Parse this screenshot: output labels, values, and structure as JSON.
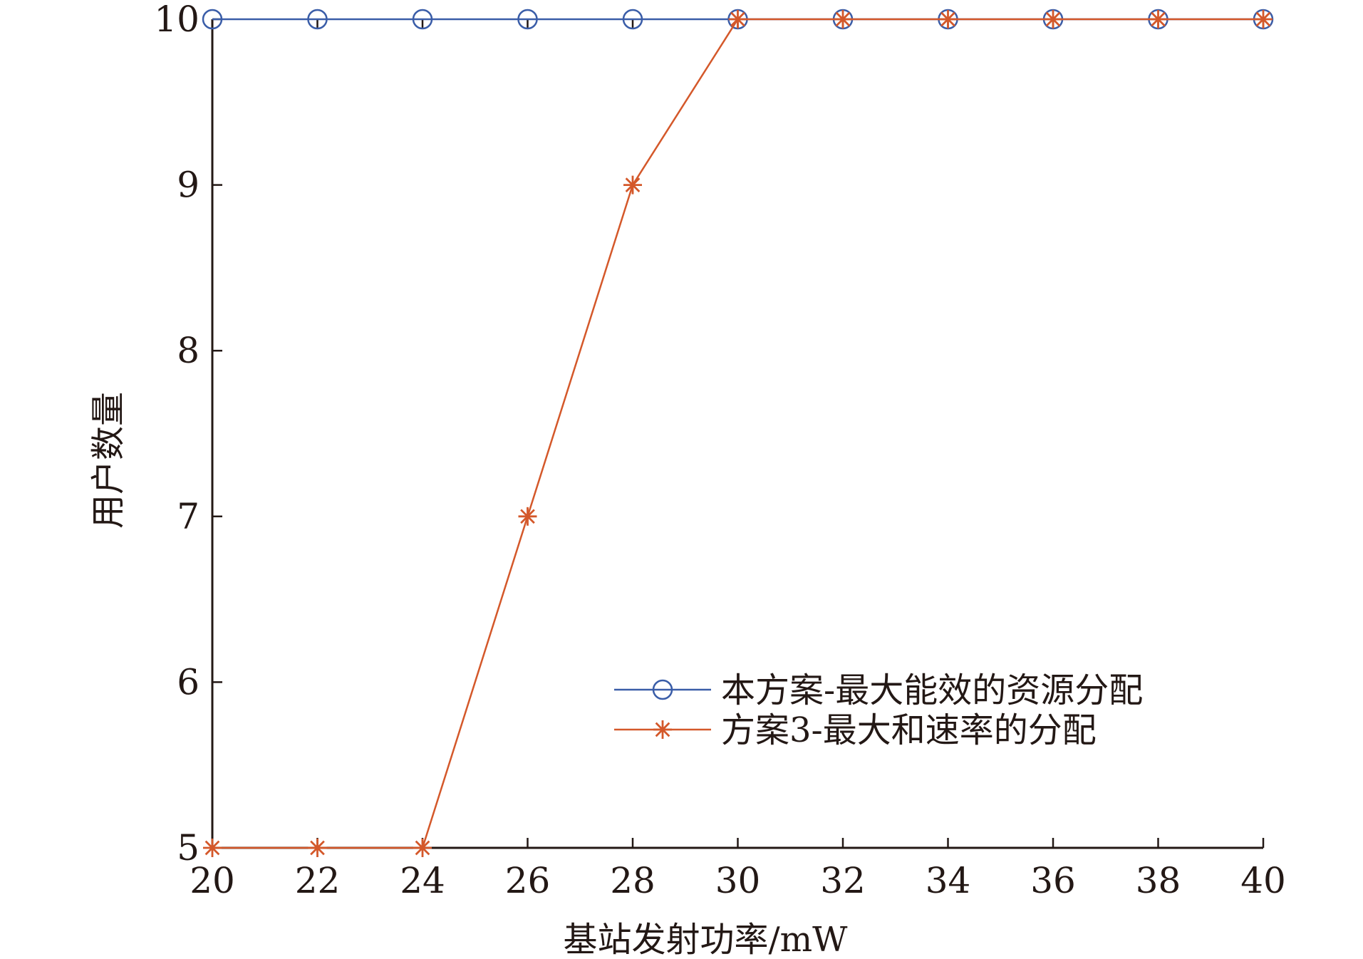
{
  "chart_data": {
    "type": "line",
    "title": "",
    "xlabel": "基站发射功率/mW",
    "ylabel": "用户数量",
    "x": [
      20,
      22,
      24,
      26,
      28,
      30,
      32,
      34,
      36,
      38,
      40
    ],
    "xlim": [
      20,
      40
    ],
    "ylim": [
      5,
      10
    ],
    "xticks": [
      "20",
      "22",
      "24",
      "26",
      "28",
      "30",
      "32",
      "34",
      "36",
      "38",
      "40"
    ],
    "yticks": [
      "5",
      "6",
      "7",
      "8",
      "9",
      "10"
    ],
    "grid": false,
    "legend_position": "lower-right",
    "series": [
      {
        "name": "本方案-最大能效的资源分配",
        "values": [
          10,
          10,
          10,
          10,
          10,
          10,
          10,
          10,
          10,
          10,
          10
        ],
        "color": "#3a5da8",
        "marker": "circle"
      },
      {
        "name": "方案3-最大和速率的分配",
        "values": [
          5,
          5,
          5,
          7,
          9,
          10,
          10,
          10,
          10,
          10,
          10
        ],
        "color": "#d4582a",
        "marker": "asterisk"
      }
    ]
  }
}
